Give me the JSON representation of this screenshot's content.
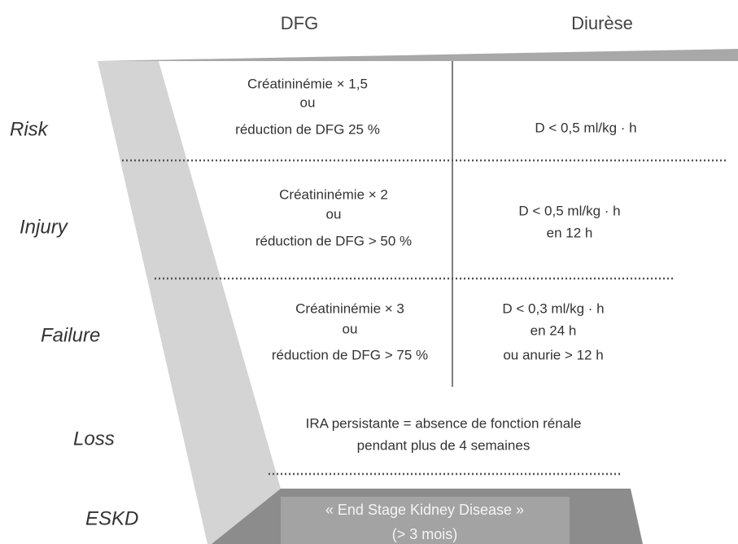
{
  "header": {
    "dfg": "DFG",
    "diurese": "Diurèse"
  },
  "rows": [
    {
      "label": "Risk",
      "dfg": [
        "Créatininémie × 1,5",
        "ou",
        "réduction de DFG 25 %"
      ],
      "diurese": [
        "D < 0,5 ml/kg · h"
      ]
    },
    {
      "label": "Injury",
      "dfg": [
        "Créatininémie × 2",
        "ou",
        "réduction de DFG > 50 %"
      ],
      "diurese": [
        "D < 0,5 ml/kg · h",
        "en 12 h"
      ]
    },
    {
      "label": "Failure",
      "dfg": [
        "Créatininémie × 3",
        "ou",
        "réduction de DFG > 75 %"
      ],
      "diurese": [
        "D < 0,3 ml/kg · h",
        "en 24 h",
        "ou anurie > 12 h"
      ]
    },
    {
      "label": "Loss",
      "text": [
        "IRA persistante = absence de fonction rénale",
        "pendant plus de 4 semaines"
      ]
    },
    {
      "label": "ESKD",
      "text": [
        "« End Stage Kidney Disease »",
        "(> 3 mois)"
      ]
    }
  ]
}
